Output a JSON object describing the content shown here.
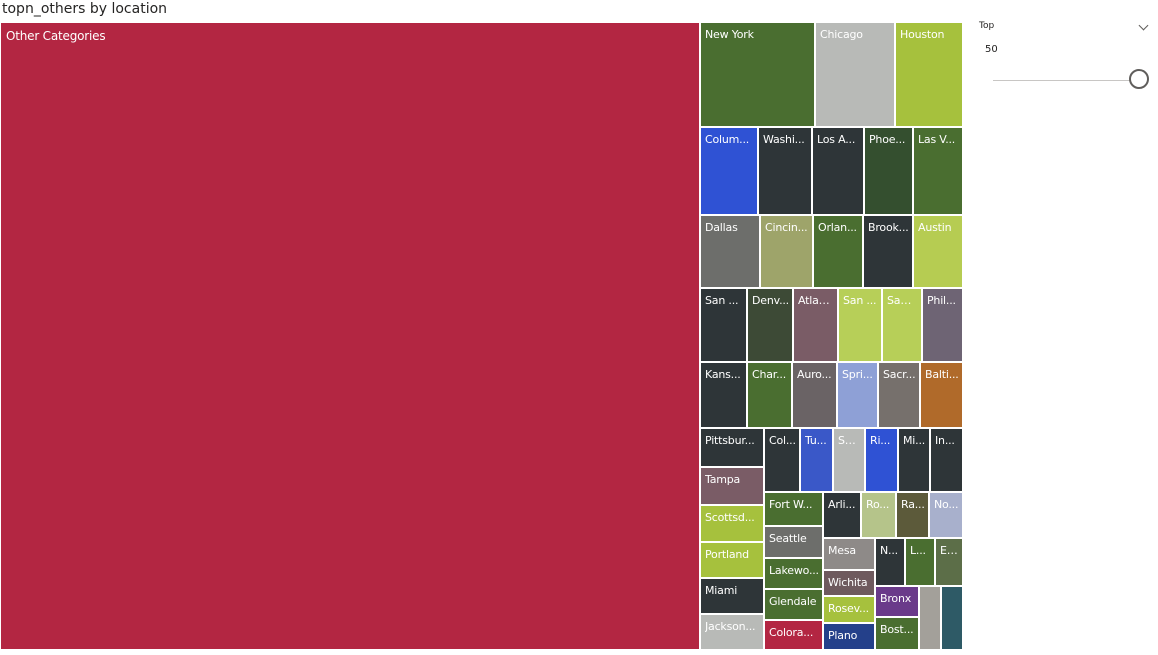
{
  "visual": {
    "title": "topn_others by location"
  },
  "slicer": {
    "label": "Top",
    "value": "50",
    "min": 0,
    "max": 50,
    "level": 1.0
  },
  "chart_data": {
    "type": "treemap",
    "title": "topn_others by location",
    "tiles": [
      {
        "label": "Other Categories",
        "color": "#b32642"
      },
      {
        "label": "New York",
        "color": "#4a6e30"
      },
      {
        "label": "Chicago",
        "color": "#b8bab7"
      },
      {
        "label": "Houston",
        "color": "#a6c13d"
      },
      {
        "label": "Colum...",
        "color": "#2f52d4"
      },
      {
        "label": "Washi...",
        "color": "#2e3538"
      },
      {
        "label": "Los A...",
        "color": "#2e3538"
      },
      {
        "label": "Phoe...",
        "color": "#344f2f"
      },
      {
        "label": "Las V...",
        "color": "#4a6e30"
      },
      {
        "label": "Dallas",
        "color": "#6d6e6b"
      },
      {
        "label": "Cincin...",
        "color": "#9ea46a"
      },
      {
        "label": "Orlan...",
        "color": "#4a6e30"
      },
      {
        "label": "Brook...",
        "color": "#2e3538"
      },
      {
        "label": "Austin",
        "color": "#b6cc52"
      },
      {
        "label": "San ...",
        "color": "#2e3538"
      },
      {
        "label": "Denv...",
        "color": "#3d4a36"
      },
      {
        "label": "Atlan...",
        "color": "#7a5c66"
      },
      {
        "label": "San ...",
        "color": "#b7cf58"
      },
      {
        "label": "San ...",
        "color": "#b7cf58"
      },
      {
        "label": "Phil...",
        "color": "#6e6474"
      },
      {
        "label": "Kans...",
        "color": "#2e3538"
      },
      {
        "label": "Char...",
        "color": "#4a6e30"
      },
      {
        "label": "Auro...",
        "color": "#6a6365"
      },
      {
        "label": "Spri...",
        "color": "#8ea0d6"
      },
      {
        "label": "Sacr...",
        "color": "#76706c"
      },
      {
        "label": "Balti...",
        "color": "#b06a2a"
      },
      {
        "label": "Pittsbur...",
        "color": "#2e3538"
      },
      {
        "label": "Col...",
        "color": "#2e3538"
      },
      {
        "label": "Tu...",
        "color": "#3a58c8"
      },
      {
        "label": "Sa...",
        "color": "#b8bab7"
      },
      {
        "label": "Ri...",
        "color": "#2f52d4"
      },
      {
        "label": "Mi...",
        "color": "#2e3538"
      },
      {
        "label": "In...",
        "color": "#2e3538"
      },
      {
        "label": "Tampa",
        "color": "#7a5c66"
      },
      {
        "label": "Fort W...",
        "color": "#4a6e30"
      },
      {
        "label": "Arli...",
        "color": "#2e3538"
      },
      {
        "label": "Ro...",
        "color": "#b5c48a"
      },
      {
        "label": "Ra...",
        "color": "#5c5a3a"
      },
      {
        "label": "No...",
        "color": "#a8b0cc"
      },
      {
        "label": "Scottsd...",
        "color": "#a6c13d"
      },
      {
        "label": "Seattle",
        "color": "#6d6e6b"
      },
      {
        "label": "Portland",
        "color": "#a6c13d"
      },
      {
        "label": "Mesa",
        "color": "#8e8a88"
      },
      {
        "label": "N...",
        "color": "#2e3538"
      },
      {
        "label": "L...",
        "color": "#4a6e30"
      },
      {
        "label": "El...",
        "color": "#5c6e48"
      },
      {
        "label": "Lakewo...",
        "color": "#4a6e30"
      },
      {
        "label": "Wichita",
        "color": "#6e5a5e"
      },
      {
        "label": "Miami",
        "color": "#2e3538"
      },
      {
        "label": "Glendale",
        "color": "#4a6e30"
      },
      {
        "label": "Rosev...",
        "color": "#a6c13d"
      },
      {
        "label": "Bronx",
        "color": "#6a3a8a"
      },
      {
        "label": "",
        "color": "#a3a09a"
      },
      {
        "label": "",
        "color": "#2e5a66"
      },
      {
        "label": "Jackson...",
        "color": "#b8bab7"
      },
      {
        "label": "Colora...",
        "color": "#b32642"
      },
      {
        "label": "Plano",
        "color": "#24408a"
      },
      {
        "label": "Bost...",
        "color": "#4a6e30"
      }
    ]
  }
}
